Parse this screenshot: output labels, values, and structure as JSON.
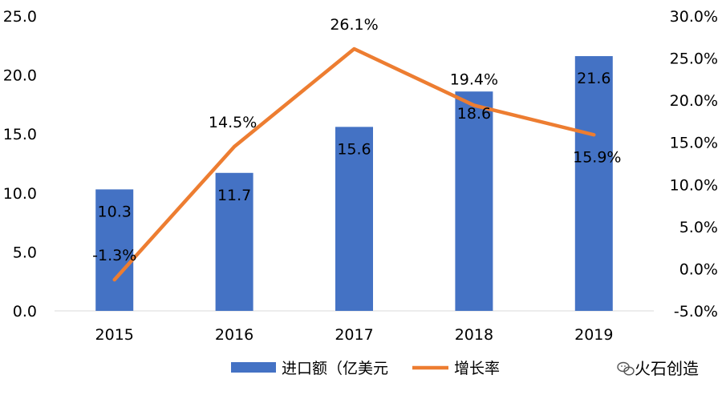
{
  "chart_data": {
    "type": "bar",
    "categories": [
      "2015",
      "2016",
      "2017",
      "2018",
      "2019"
    ],
    "series": [
      {
        "name": "进口额（亿美元",
        "type": "bar",
        "axis": "left",
        "color": "#4472C4",
        "values": [
          10.3,
          11.7,
          15.6,
          18.6,
          21.6
        ],
        "labels": [
          "10.3",
          "11.7",
          "15.6",
          "18.6",
          "21.6"
        ]
      },
      {
        "name": "增长率",
        "type": "line",
        "axis": "right",
        "color": "#ED7D31",
        "values": [
          -1.3,
          14.5,
          26.1,
          19.4,
          15.9
        ],
        "labels": [
          "-1.3%",
          "14.5%",
          "26.1%",
          "19.4%",
          "15.9%"
        ]
      }
    ],
    "y_left": {
      "ylim": [
        0,
        25
      ],
      "ticks": [
        "0.0",
        "5.0",
        "10.0",
        "15.0",
        "20.0",
        "25.0"
      ]
    },
    "y_right": {
      "ylim": [
        -5,
        30
      ],
      "ticks": [
        "-5.0%",
        "0.0%",
        "5.0%",
        "10.0%",
        "15.0%",
        "20.0%",
        "25.0%",
        "30.0%"
      ]
    },
    "grid": false,
    "legend": "bottom"
  },
  "watermark": {
    "text": "火石创造",
    "icon": "wechat-icon"
  }
}
